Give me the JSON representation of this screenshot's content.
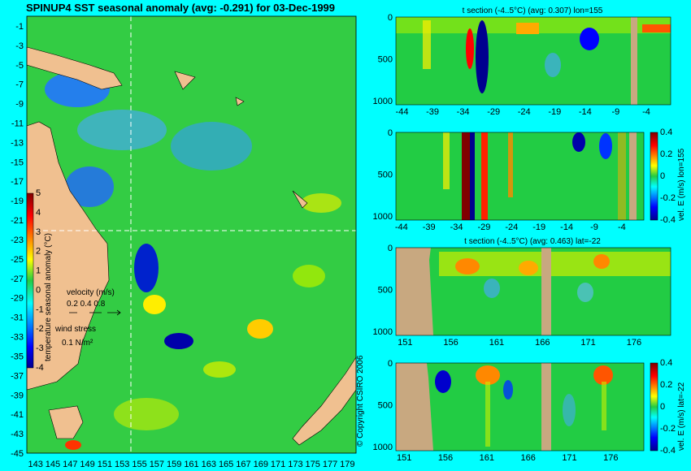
{
  "chart_data": [
    {
      "type": "heatmap",
      "title": "SPINUP4 SST seasonal anomaly (avg: -0.291) for 03-Dec-1999",
      "x_ticks": [
        "143",
        "145",
        "147",
        "149",
        "151",
        "153",
        "155",
        "157",
        "159",
        "161",
        "163",
        "165",
        "167",
        "169",
        "171",
        "173",
        "175",
        "177",
        "179"
      ],
      "y_ticks": [
        "-1",
        "-3",
        "-5",
        "-7",
        "-9",
        "-11",
        "-13",
        "-15",
        "-17",
        "-19",
        "-21",
        "-23",
        "-25",
        "-27",
        "-29",
        "-31",
        "-33",
        "-35",
        "-37",
        "-39",
        "-41",
        "-43",
        "-45"
      ],
      "xlim": [
        142,
        180
      ],
      "ylim": [
        -45,
        0
      ],
      "crosshair": {
        "lon": 155,
        "lat": -22
      },
      "colorbar": {
        "label": "temperature seasonal anomaly (°C)",
        "ticks": [
          "5",
          "4",
          "3",
          "2",
          "1",
          "0",
          "-1",
          "-2",
          "-3",
          "-4"
        ],
        "range": [
          -4,
          5
        ]
      },
      "velocity_legend": {
        "label": "velocity (m/s)",
        "values": "0.2 0.4 0.8"
      },
      "wind_legend": {
        "label": "wind stress",
        "value": "0.1 N/m²"
      },
      "copyright": "© Copyright CSIRO 2006"
    },
    {
      "type": "heatmap",
      "title": "t section (-4..5°C) (avg: 0.307) lon=155",
      "x_ticks": [
        "-44",
        "-39",
        "-34",
        "-29",
        "-24",
        "-19",
        "-14",
        "-9",
        "-4"
      ],
      "y_ticks": [
        "0",
        "500",
        "1000"
      ],
      "xlim": [
        -45,
        0
      ],
      "ylim": [
        1050,
        0
      ]
    },
    {
      "type": "heatmap",
      "title": "",
      "x_ticks": [
        "-44",
        "-39",
        "-34",
        "-29",
        "-24",
        "-19",
        "-14",
        "-9",
        "-4"
      ],
      "y_ticks": [
        "0",
        "500",
        "1000"
      ],
      "xlim": [
        -45,
        0
      ],
      "ylim": [
        1050,
        0
      ],
      "colorbar": {
        "label": "vel. E (m/s) lon=155",
        "ticks": [
          "0.4",
          "0.2",
          "0",
          "-0.2",
          "-0.4"
        ],
        "range": [
          -0.4,
          0.4
        ]
      }
    },
    {
      "type": "heatmap",
      "title": "t section (-4..5°C) (avg: 0.463) lat=-22",
      "x_ticks": [
        "151",
        "156",
        "161",
        "166",
        "171",
        "176"
      ],
      "y_ticks": [
        "0",
        "500",
        "1000"
      ],
      "xlim": [
        150,
        180
      ],
      "ylim": [
        1050,
        0
      ]
    },
    {
      "type": "heatmap",
      "title": "",
      "x_ticks": [
        "151",
        "156",
        "161",
        "166",
        "171",
        "176"
      ],
      "y_ticks": [
        "0",
        "500",
        "1000"
      ],
      "xlim": [
        150,
        180
      ],
      "ylim": [
        1050,
        0
      ],
      "colorbar": {
        "label": "vel. E (m/s) lat=-22",
        "ticks": [
          "0.4",
          "0.2",
          "0",
          "-0.2",
          "-0.4"
        ],
        "range": [
          -0.4,
          0.4
        ]
      }
    }
  ]
}
